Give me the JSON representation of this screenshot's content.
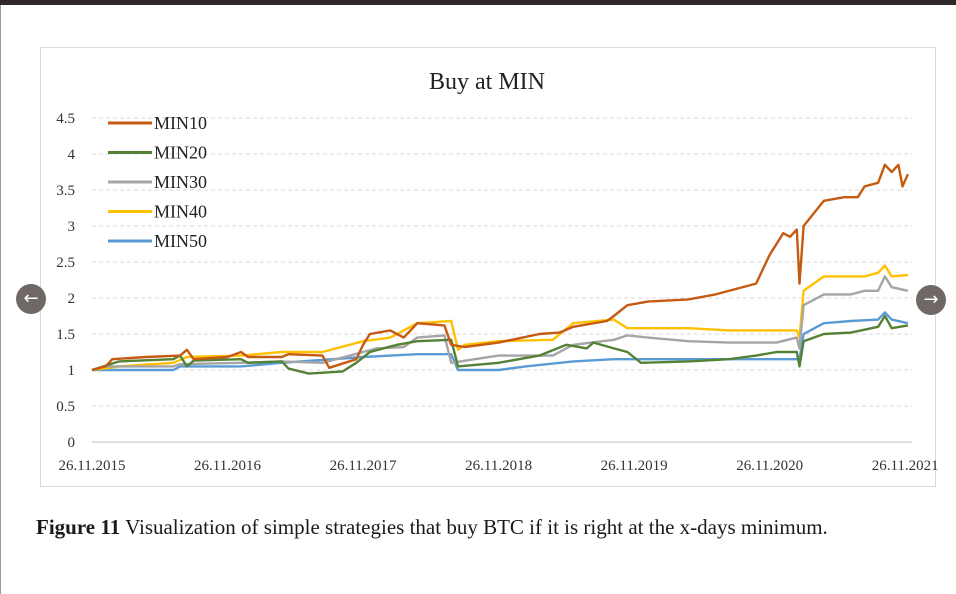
{
  "nav": {
    "prev_icon": "arrow-left-icon",
    "next_icon": "arrow-right-icon",
    "prev_glyph": "←",
    "next_glyph": "→"
  },
  "caption": {
    "label": "Figure 11",
    "text": " Visualization of simple strategies that buy BTC if it is right at the x-days minimum."
  },
  "chart_data": {
    "type": "line",
    "title": "Buy at MIN",
    "xlabel": "",
    "ylabel": "",
    "ylim": [
      0,
      4.5
    ],
    "yticks": [
      0,
      0.5,
      1,
      1.5,
      2,
      2.5,
      3,
      3.5,
      4,
      4.5
    ],
    "ytick_labels": [
      "0",
      "0.5",
      "1",
      "1.5",
      "2",
      "2.5",
      "3",
      "3.5",
      "4",
      "4.5"
    ],
    "xlim": [
      2015.9,
      2021.95
    ],
    "xticks": [
      2015.9,
      2016.9,
      2017.9,
      2018.9,
      2019.9,
      2020.9,
      2021.9
    ],
    "xtick_labels": [
      "26.11.2015",
      "26.11.2016",
      "26.11.2017",
      "26.11.2018",
      "26.11.2019",
      "26.11.2020",
      "26.11.2021"
    ],
    "grid": "horizontal-dashed",
    "legend": "top-left",
    "series": [
      {
        "name": "MIN10",
        "color": "#c55a11",
        "points": [
          [
            2015.9,
            1.0
          ],
          [
            2016.0,
            1.05
          ],
          [
            2016.05,
            1.15
          ],
          [
            2016.3,
            1.18
          ],
          [
            2016.55,
            1.2
          ],
          [
            2016.6,
            1.28
          ],
          [
            2016.65,
            1.15
          ],
          [
            2016.9,
            1.18
          ],
          [
            2017.0,
            1.25
          ],
          [
            2017.05,
            1.18
          ],
          [
            2017.3,
            1.18
          ],
          [
            2017.35,
            1.22
          ],
          [
            2017.6,
            1.2
          ],
          [
            2017.65,
            1.03
          ],
          [
            2017.85,
            1.15
          ],
          [
            2017.9,
            1.35
          ],
          [
            2017.95,
            1.5
          ],
          [
            2018.1,
            1.55
          ],
          [
            2018.2,
            1.45
          ],
          [
            2018.3,
            1.65
          ],
          [
            2018.5,
            1.62
          ],
          [
            2018.55,
            1.35
          ],
          [
            2018.65,
            1.32
          ],
          [
            2018.9,
            1.38
          ],
          [
            2019.2,
            1.5
          ],
          [
            2019.35,
            1.52
          ],
          [
            2019.45,
            1.6
          ],
          [
            2019.7,
            1.68
          ],
          [
            2019.75,
            1.75
          ],
          [
            2019.85,
            1.9
          ],
          [
            2020.0,
            1.95
          ],
          [
            2020.3,
            1.98
          ],
          [
            2020.5,
            2.05
          ],
          [
            2020.8,
            2.2
          ],
          [
            2020.9,
            2.6
          ],
          [
            2021.0,
            2.9
          ],
          [
            2021.05,
            2.85
          ],
          [
            2021.1,
            2.95
          ],
          [
            2021.12,
            2.2
          ],
          [
            2021.15,
            3.0
          ],
          [
            2021.3,
            3.35
          ],
          [
            2021.45,
            3.4
          ],
          [
            2021.55,
            3.4
          ],
          [
            2021.6,
            3.55
          ],
          [
            2021.7,
            3.6
          ],
          [
            2021.75,
            3.85
          ],
          [
            2021.8,
            3.75
          ],
          [
            2021.85,
            3.85
          ],
          [
            2021.88,
            3.55
          ],
          [
            2021.92,
            3.72
          ]
        ]
      },
      {
        "name": "MIN20",
        "color": "#548235",
        "points": [
          [
            2015.9,
            1.0
          ],
          [
            2016.1,
            1.12
          ],
          [
            2016.5,
            1.15
          ],
          [
            2016.55,
            1.2
          ],
          [
            2016.6,
            1.05
          ],
          [
            2016.65,
            1.13
          ],
          [
            2017.0,
            1.15
          ],
          [
            2017.05,
            1.1
          ],
          [
            2017.3,
            1.12
          ],
          [
            2017.35,
            1.02
          ],
          [
            2017.5,
            0.95
          ],
          [
            2017.75,
            0.98
          ],
          [
            2017.85,
            1.1
          ],
          [
            2017.95,
            1.25
          ],
          [
            2018.15,
            1.35
          ],
          [
            2018.3,
            1.4
          ],
          [
            2018.55,
            1.42
          ],
          [
            2018.6,
            1.05
          ],
          [
            2018.9,
            1.1
          ],
          [
            2019.2,
            1.2
          ],
          [
            2019.4,
            1.35
          ],
          [
            2019.55,
            1.3
          ],
          [
            2019.6,
            1.38
          ],
          [
            2019.75,
            1.3
          ],
          [
            2019.85,
            1.25
          ],
          [
            2019.95,
            1.1
          ],
          [
            2020.3,
            1.12
          ],
          [
            2020.6,
            1.15
          ],
          [
            2020.8,
            1.2
          ],
          [
            2020.95,
            1.25
          ],
          [
            2021.1,
            1.25
          ],
          [
            2021.12,
            1.05
          ],
          [
            2021.15,
            1.4
          ],
          [
            2021.3,
            1.5
          ],
          [
            2021.5,
            1.52
          ],
          [
            2021.7,
            1.6
          ],
          [
            2021.75,
            1.75
          ],
          [
            2021.8,
            1.58
          ],
          [
            2021.92,
            1.62
          ]
        ]
      },
      {
        "name": "MIN30",
        "color": "#a5a5a5",
        "points": [
          [
            2015.9,
            1.0
          ],
          [
            2016.0,
            1.05
          ],
          [
            2016.5,
            1.05
          ],
          [
            2016.55,
            1.08
          ],
          [
            2017.0,
            1.1
          ],
          [
            2017.3,
            1.12
          ],
          [
            2017.6,
            1.1
          ],
          [
            2017.9,
            1.25
          ],
          [
            2018.0,
            1.3
          ],
          [
            2018.2,
            1.32
          ],
          [
            2018.3,
            1.45
          ],
          [
            2018.5,
            1.48
          ],
          [
            2018.55,
            1.1
          ],
          [
            2018.9,
            1.2
          ],
          [
            2019.3,
            1.2
          ],
          [
            2019.45,
            1.35
          ],
          [
            2019.75,
            1.42
          ],
          [
            2019.85,
            1.48
          ],
          [
            2020.0,
            1.45
          ],
          [
            2020.3,
            1.4
          ],
          [
            2020.6,
            1.38
          ],
          [
            2020.95,
            1.38
          ],
          [
            2021.1,
            1.45
          ],
          [
            2021.12,
            1.3
          ],
          [
            2021.15,
            1.9
          ],
          [
            2021.3,
            2.05
          ],
          [
            2021.5,
            2.05
          ],
          [
            2021.6,
            2.1
          ],
          [
            2021.7,
            2.1
          ],
          [
            2021.75,
            2.3
          ],
          [
            2021.8,
            2.15
          ],
          [
            2021.92,
            2.1
          ]
        ]
      },
      {
        "name": "MIN40",
        "color": "#ffc000",
        "points": [
          [
            2015.9,
            1.0
          ],
          [
            2016.1,
            1.05
          ],
          [
            2016.5,
            1.1
          ],
          [
            2016.6,
            1.18
          ],
          [
            2017.0,
            1.2
          ],
          [
            2017.3,
            1.25
          ],
          [
            2017.6,
            1.25
          ],
          [
            2017.9,
            1.4
          ],
          [
            2018.1,
            1.45
          ],
          [
            2018.3,
            1.65
          ],
          [
            2018.55,
            1.68
          ],
          [
            2018.6,
            1.28
          ],
          [
            2018.65,
            1.35
          ],
          [
            2018.9,
            1.4
          ],
          [
            2019.3,
            1.42
          ],
          [
            2019.45,
            1.65
          ],
          [
            2019.75,
            1.7
          ],
          [
            2019.85,
            1.58
          ],
          [
            2020.3,
            1.58
          ],
          [
            2020.6,
            1.55
          ],
          [
            2020.95,
            1.55
          ],
          [
            2021.1,
            1.55
          ],
          [
            2021.12,
            1.45
          ],
          [
            2021.15,
            2.1
          ],
          [
            2021.3,
            2.3
          ],
          [
            2021.5,
            2.3
          ],
          [
            2021.6,
            2.3
          ],
          [
            2021.7,
            2.35
          ],
          [
            2021.75,
            2.45
          ],
          [
            2021.8,
            2.3
          ],
          [
            2021.92,
            2.32
          ]
        ]
      },
      {
        "name": "MIN50",
        "color": "#5b9bd5",
        "points": [
          [
            2015.9,
            1.0
          ],
          [
            2016.5,
            1.0
          ],
          [
            2016.55,
            1.05
          ],
          [
            2017.0,
            1.05
          ],
          [
            2017.3,
            1.1
          ],
          [
            2017.9,
            1.18
          ],
          [
            2018.3,
            1.22
          ],
          [
            2018.55,
            1.22
          ],
          [
            2018.6,
            1.0
          ],
          [
            2018.9,
            1.0
          ],
          [
            2019.1,
            1.05
          ],
          [
            2019.45,
            1.12
          ],
          [
            2019.75,
            1.15
          ],
          [
            2019.85,
            1.15
          ],
          [
            2020.3,
            1.15
          ],
          [
            2020.6,
            1.15
          ],
          [
            2020.95,
            1.15
          ],
          [
            2021.12,
            1.15
          ],
          [
            2021.15,
            1.5
          ],
          [
            2021.3,
            1.65
          ],
          [
            2021.5,
            1.68
          ],
          [
            2021.7,
            1.7
          ],
          [
            2021.75,
            1.8
          ],
          [
            2021.8,
            1.7
          ],
          [
            2021.92,
            1.65
          ]
        ]
      }
    ]
  }
}
